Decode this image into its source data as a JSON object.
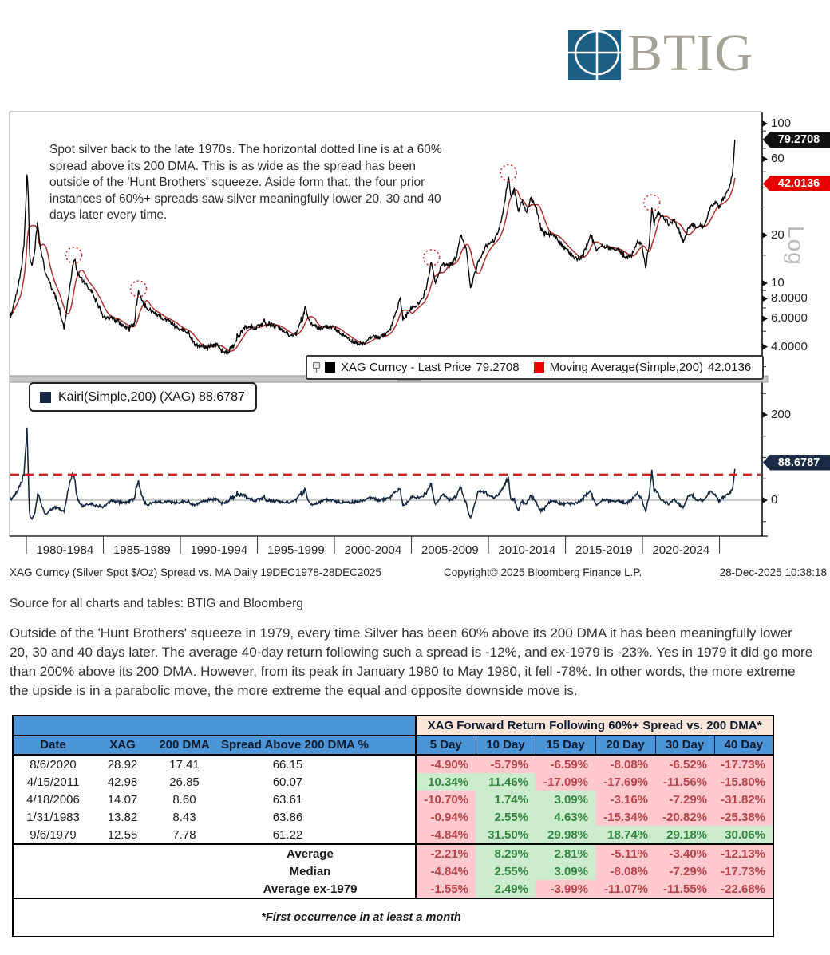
{
  "logo": {
    "text": "BTIG"
  },
  "chart": {
    "annotation": "Spot silver back to the late 1970s. The horizontal dotted line is at a 60% spread above its 200 DMA. This is as wide as the spread has been outside of the 'Hunt Brothers' squeeze. Aside form that, the four prior instances of 60%+ spreads saw silver meaningfully lower 20, 30 and 40 days later every time.",
    "legend_main": {
      "series1_label": "XAG Curncy - Last Price",
      "series1_value": "79.2708",
      "series2_label": "Moving Average(Simple,200)",
      "series2_value": "42.0136"
    },
    "legend_kairi": "Kairi(Simple,200) (XAG) 88.6787",
    "badges": {
      "last_price": "79.2708",
      "moving_average": "42.0136",
      "kairi": "88.6787"
    },
    "log_label": "Log",
    "price_axis": {
      "labels": [
        "100",
        "60",
        "20",
        "10",
        "8.0000",
        "6.0000",
        "4.0000"
      ],
      "values": [
        100,
        60,
        20,
        10,
        8,
        6,
        4
      ],
      "minor": [
        90,
        80,
        70,
        50,
        40,
        30,
        15,
        9,
        7,
        5,
        3
      ]
    },
    "kairi_axis": {
      "labels": [
        "200",
        "0"
      ],
      "values": [
        200,
        0
      ],
      "minor": [
        250,
        150,
        100,
        50,
        -50
      ]
    },
    "x_labels": [
      "1980-1984",
      "1985-1989",
      "1990-1994",
      "1995-1999",
      "2000-2004",
      "2005-2009",
      "2010-2014",
      "2015-2019",
      "2020-2024"
    ],
    "info_line": {
      "left": "XAG Curncy (Silver Spot  $/Oz) Spread vs. MA Daily 19DEC1978-28DEC2025",
      "center": "Copyright© 2025 Bloomberg Finance L.P.",
      "right": "28-Dec-2025 10:38:18"
    },
    "colors": {
      "price": "#000000",
      "ma": "#b03030",
      "kairi": "#16283f",
      "threshold": "#cc2222",
      "badge_black": "#111111",
      "badge_red": "#e60000",
      "badge_navy": "#1b2b45",
      "legend_red": "#ee0000",
      "table_blue": "#4c95d9",
      "table_peach": "#fce6d9"
    }
  },
  "chart_data": [
    {
      "type": "line",
      "title": "XAG Curncy (Silver Spot $/Oz) Spread vs. MA Daily 19DEC1978-28DEC2025",
      "y_scale": "log",
      "x_range": [
        1978.96,
        2026.0
      ],
      "y_ticks": [
        4,
        6,
        8,
        10,
        20,
        60,
        100
      ],
      "legend_position": "bottom",
      "series": [
        {
          "name": "XAG Curncy - Last Price",
          "color": "#000000",
          "last": 79.2708,
          "anchors": [
            [
              1978.96,
              6.2
            ],
            [
              1979.15,
              7.2
            ],
            [
              1979.4,
              8.8
            ],
            [
              1979.68,
              12.55
            ],
            [
              1979.85,
              18
            ],
            [
              1979.98,
              34
            ],
            [
              1980.05,
              50
            ],
            [
              1980.12,
              36
            ],
            [
              1980.22,
              14
            ],
            [
              1980.38,
              13
            ],
            [
              1980.55,
              16.5
            ],
            [
              1980.72,
              24
            ],
            [
              1980.9,
              17
            ],
            [
              1981.2,
              12
            ],
            [
              1981.6,
              9.5
            ],
            [
              1982.0,
              7.8
            ],
            [
              1982.45,
              5.2
            ],
            [
              1982.75,
              8.5
            ],
            [
              1983.08,
              14.3
            ],
            [
              1983.35,
              11.5
            ],
            [
              1983.75,
              10
            ],
            [
              1984.2,
              9
            ],
            [
              1984.6,
              7.5
            ],
            [
              1985.0,
              6.2
            ],
            [
              1985.5,
              6.1
            ],
            [
              1986.0,
              5.7
            ],
            [
              1986.5,
              5.2
            ],
            [
              1987.0,
              5.5
            ],
            [
              1987.28,
              8.8
            ],
            [
              1987.6,
              7.5
            ],
            [
              1988.0,
              6.8
            ],
            [
              1988.6,
              6.3
            ],
            [
              1989.2,
              5.8
            ],
            [
              1989.8,
              5.3
            ],
            [
              1990.4,
              5.0
            ],
            [
              1991.0,
              4.1
            ],
            [
              1991.7,
              4.0
            ],
            [
              1992.4,
              4.1
            ],
            [
              1993.0,
              3.65
            ],
            [
              1993.6,
              4.3
            ],
            [
              1994.1,
              5.3
            ],
            [
              1994.8,
              5.2
            ],
            [
              1995.4,
              5.6
            ],
            [
              1996.0,
              5.5
            ],
            [
              1996.7,
              5.0
            ],
            [
              1997.3,
              4.6
            ],
            [
              1997.9,
              5.8
            ],
            [
              1998.1,
              7.0
            ],
            [
              1998.5,
              5.5
            ],
            [
              1999.1,
              5.2
            ],
            [
              1999.7,
              5.4
            ],
            [
              2000.3,
              5.0
            ],
            [
              2001.0,
              4.4
            ],
            [
              2001.85,
              4.1
            ],
            [
              2002.4,
              4.6
            ],
            [
              2003.0,
              4.6
            ],
            [
              2003.6,
              5.0
            ],
            [
              2004.0,
              6.5
            ],
            [
              2004.28,
              8.1
            ],
            [
              2004.45,
              5.9
            ],
            [
              2005.0,
              7.0
            ],
            [
              2005.6,
              7.6
            ],
            [
              2006.0,
              9.5
            ],
            [
              2006.3,
              13.8
            ],
            [
              2006.55,
              10.2
            ],
            [
              2007.0,
              13.0
            ],
            [
              2007.6,
              13.2
            ],
            [
              2007.9,
              14.5
            ],
            [
              2008.2,
              20.0
            ],
            [
              2008.55,
              16.5
            ],
            [
              2008.85,
              9.3
            ],
            [
              2009.3,
              13.2
            ],
            [
              2009.8,
              17.0
            ],
            [
              2010.3,
              18.2
            ],
            [
              2010.7,
              22
            ],
            [
              2011.0,
              30
            ],
            [
              2011.3,
              47
            ],
            [
              2011.45,
              34
            ],
            [
              2011.65,
              40
            ],
            [
              2011.95,
              28
            ],
            [
              2012.2,
              32.5
            ],
            [
              2012.45,
              27.5
            ],
            [
              2012.75,
              34
            ],
            [
              2013.1,
              30
            ],
            [
              2013.4,
              22
            ],
            [
              2013.8,
              20
            ],
            [
              2014.2,
              20.5
            ],
            [
              2014.7,
              17.5
            ],
            [
              2015.1,
              16
            ],
            [
              2015.55,
              14.5
            ],
            [
              2015.95,
              14
            ],
            [
              2016.3,
              16.5
            ],
            [
              2016.6,
              20.2
            ],
            [
              2017.0,
              16.2
            ],
            [
              2017.4,
              17.3
            ],
            [
              2017.9,
              16.5
            ],
            [
              2018.4,
              16.3
            ],
            [
              2018.9,
              14.2
            ],
            [
              2019.3,
              15
            ],
            [
              2019.65,
              18.3
            ],
            [
              2019.95,
              17.8
            ],
            [
              2020.2,
              12.3
            ],
            [
              2020.45,
              18
            ],
            [
              2020.6,
              29.2
            ],
            [
              2020.75,
              24
            ],
            [
              2021.05,
              27.5
            ],
            [
              2021.35,
              26
            ],
            [
              2021.7,
              23.5
            ],
            [
              2022.1,
              24.5
            ],
            [
              2022.35,
              21.5
            ],
            [
              2022.65,
              18.3
            ],
            [
              2022.95,
              21.5
            ],
            [
              2023.2,
              23.5
            ],
            [
              2023.5,
              22.8
            ],
            [
              2023.8,
              23
            ],
            [
              2024.05,
              22.8
            ],
            [
              2024.3,
              28.5
            ],
            [
              2024.55,
              31
            ],
            [
              2024.75,
              32.5
            ],
            [
              2024.95,
              29.5
            ],
            [
              2025.15,
              32.5
            ],
            [
              2025.4,
              35.5
            ],
            [
              2025.6,
              39
            ],
            [
              2025.75,
              44
            ],
            [
              2025.85,
              49
            ],
            [
              2025.93,
              62
            ],
            [
              2025.99,
              79.27
            ]
          ]
        },
        {
          "name": "Moving Average(Simple,200)",
          "color": "#b03030",
          "last": 42.0136,
          "derived": "trailing 200-day mean of price"
        }
      ],
      "events_circled": [
        [
          1983.08,
          14.3
        ],
        [
          1987.28,
          8.8
        ],
        [
          2006.3,
          13.8
        ],
        [
          2011.3,
          47
        ],
        [
          2020.6,
          30.5
        ]
      ]
    },
    {
      "type": "line",
      "title": "Kairi(Simple,200) (XAG)",
      "last": 88.6787,
      "threshold_line": 60,
      "y_ticks": [
        0,
        200
      ],
      "derived": "(price / MA200 - 1) * 100"
    }
  ],
  "source_line": "Source for all charts and tables: BTIG and Bloomberg",
  "paragraph": "Outside of the 'Hunt Brothers' squeeze in 1979, every time Silver has been 60% above its 200 DMA it has been meaningfully lower 20, 30 and 40 days later. The average 40-day return following such a spread is -12%, and ex-1979 is -23%. Yes in 1979 it did go more than 200% above its 200 DMA. However, from its peak in January 1980 to May 1980, it fell -78%. In other words, the more extreme the upside is in a parabolic move, the more extreme the equal and opposite downside move is.",
  "table": {
    "group_header": "XAG Forward Return Following 60%+ Spread vs. 200 DMA*",
    "columns_left": [
      "Date",
      "XAG",
      "200 DMA",
      "Spread Above 200 DMA %"
    ],
    "columns_right": [
      "5 Day",
      "10 Day",
      "15 Day",
      "20 Day",
      "30 Day",
      "40 Day"
    ],
    "rows": [
      {
        "date": "8/6/2020",
        "xag": "28.92",
        "dma": "17.41",
        "spread": "66.15",
        "returns": [
          "-4.90%",
          "-5.79%",
          "-6.59%",
          "-8.08%",
          "-6.52%",
          "-17.73%"
        ]
      },
      {
        "date": "4/15/2011",
        "xag": "42.98",
        "dma": "26.85",
        "spread": "60.07",
        "returns": [
          "10.34%",
          "11.46%",
          "-17.09%",
          "-17.69%",
          "-11.56%",
          "-15.80%"
        ]
      },
      {
        "date": "4/18/2006",
        "xag": "14.07",
        "dma": "8.60",
        "spread": "63.61",
        "returns": [
          "-10.70%",
          "1.74%",
          "3.09%",
          "-3.16%",
          "-7.29%",
          "-31.82%"
        ]
      },
      {
        "date": "1/31/1983",
        "xag": "13.82",
        "dma": "8.43",
        "spread": "63.86",
        "returns": [
          "-0.94%",
          "2.55%",
          "4.63%",
          "-15.34%",
          "-20.82%",
          "-25.38%"
        ]
      },
      {
        "date": "9/6/1979",
        "xag": "12.55",
        "dma": "7.78",
        "spread": "61.22",
        "returns": [
          "-4.84%",
          "31.50%",
          "29.98%",
          "18.74%",
          "29.18%",
          "30.06%"
        ]
      }
    ],
    "summary": [
      {
        "label": "Average",
        "returns": [
          "-2.21%",
          "8.29%",
          "2.81%",
          "-5.11%",
          "-3.40%",
          "-12.13%"
        ]
      },
      {
        "label": "Median",
        "returns": [
          "-4.84%",
          "2.55%",
          "3.09%",
          "-8.08%",
          "-7.29%",
          "-17.73%"
        ]
      },
      {
        "label": "Average ex-1979",
        "returns": [
          "-1.55%",
          "2.49%",
          "-3.99%",
          "-11.07%",
          "-11.55%",
          "-22.68%"
        ]
      }
    ],
    "footnote": "*First occurrence in at least a month"
  }
}
